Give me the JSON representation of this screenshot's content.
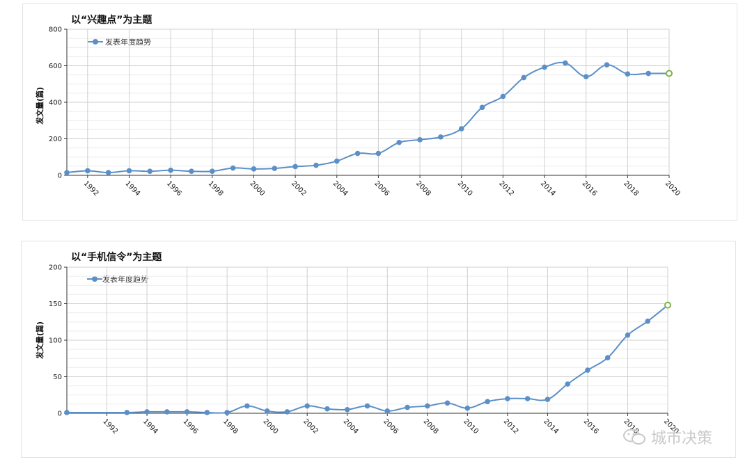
{
  "charts": [
    {
      "title": "以“兴趣点”为主题",
      "ylabel": "发文量(篇)",
      "legend": "发表年度趋势",
      "yticks": [
        0,
        200,
        400,
        600,
        800
      ],
      "xtick_labels": [
        "1992",
        "1994",
        "1996",
        "1998",
        "2000",
        "2002",
        "2004",
        "2006",
        "2008",
        "2010",
        "2012",
        "2014",
        "2016",
        "2018",
        "2020"
      ]
    },
    {
      "title": "以“手机信令”为主题",
      "ylabel": "发文量(篇)",
      "legend": "发表年度趋势",
      "yticks": [
        0,
        50,
        100,
        150,
        200
      ],
      "xtick_labels": [
        "1992",
        "1994",
        "1996",
        "1998",
        "2000",
        "2002",
        "2004",
        "2006",
        "2008",
        "2010",
        "2012",
        "2014",
        "2016",
        "2018",
        "2020"
      ]
    }
  ],
  "chart_data": [
    {
      "type": "line",
      "title": "以“兴趣点”为主题",
      "xlabel": "",
      "ylabel": "发文量(篇)",
      "ylim": [
        0,
        800
      ],
      "xlim": [
        1991,
        2020
      ],
      "grid": true,
      "legend_position": "top-left",
      "series": [
        {
          "name": "发表年度趋势",
          "color": "#5b8fc7",
          "last_point_color": "#7cb342",
          "x": [
            1991,
            1992,
            1993,
            1994,
            1995,
            1996,
            1997,
            1998,
            1999,
            2000,
            2001,
            2002,
            2003,
            2004,
            2005,
            2006,
            2007,
            2008,
            2009,
            2010,
            2011,
            2012,
            2013,
            2014,
            2015,
            2016,
            2017,
            2018,
            2019,
            2020
          ],
          "y": [
            15,
            25,
            15,
            25,
            22,
            28,
            22,
            22,
            40,
            35,
            38,
            48,
            55,
            78,
            120,
            120,
            180,
            195,
            210,
            255,
            372,
            432,
            535,
            592,
            615,
            540,
            605,
            555,
            558,
            558
          ]
        }
      ]
    },
    {
      "type": "line",
      "title": "以“手机信令”为主题",
      "xlabel": "",
      "ylabel": "发文量(篇)",
      "ylim": [
        0,
        200
      ],
      "xlim": [
        1990,
        2020
      ],
      "grid": true,
      "legend_position": "top-left",
      "series": [
        {
          "name": "发表年度趋势",
          "color": "#5b8fc7",
          "last_point_color": "#7cb342",
          "x": [
            1990,
            1993,
            1994,
            1995,
            1996,
            1997,
            1998,
            1999,
            2000,
            2001,
            2002,
            2003,
            2004,
            2005,
            2006,
            2007,
            2008,
            2009,
            2010,
            2011,
            2012,
            2013,
            2014,
            2015,
            2016,
            2017,
            2018,
            2019,
            2020
          ],
          "y": [
            1,
            1,
            2,
            2,
            2,
            1,
            1,
            10,
            3,
            2,
            10,
            6,
            5,
            10,
            3,
            8,
            10,
            14,
            7,
            16,
            20,
            20,
            19,
            40,
            59,
            76,
            107,
            126,
            148
          ]
        }
      ]
    }
  ],
  "watermark": {
    "icon": "wechat-icon",
    "text": "城市决策"
  }
}
